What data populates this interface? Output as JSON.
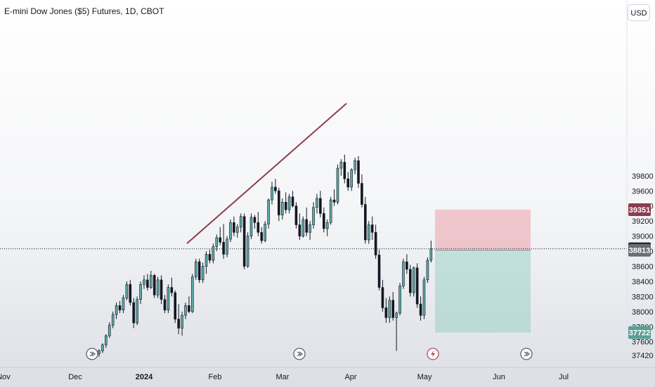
{
  "header": {
    "symbol_title": "E-mini Dow Jones ($5) Futures, 1D, CBOT",
    "currency_button": "USD"
  },
  "colors": {
    "up": "#26a69a",
    "up_body": "#5fa9a8",
    "down": "#131722",
    "trendline": "#8e3b4f",
    "stop_zone": "rgba(236,142,152,0.45)",
    "target_zone": "rgba(120,196,184,0.38)",
    "tag_stop": "#8e3b4f",
    "tag_last": "#131722",
    "tag_entry": "#6a6d78",
    "tag_target": "#5b9e96"
  },
  "chart_data": {
    "type": "candlestick",
    "y_axis": {
      "ticks": [
        37420,
        37600,
        37800,
        38000,
        38200,
        38400,
        38600,
        38800,
        39000,
        39200,
        39400,
        39600,
        39800
      ],
      "min": 37420,
      "max": 39820
    },
    "x_axis": {
      "labels": [
        "Nov",
        "Dec",
        "2024",
        "Feb",
        "Mar",
        "Apr",
        "May",
        "Jun",
        "Jul"
      ]
    },
    "price_tags": [
      {
        "name": "stop",
        "value": "39351"
      },
      {
        "name": "last",
        "value": "38832"
      },
      {
        "name": "entry",
        "value": "38813"
      },
      {
        "name": "target",
        "value": "37722"
      }
    ],
    "position": {
      "type": "long",
      "entry": 38813,
      "stop": 39351,
      "target": 37722,
      "start_date": "May 1",
      "end_date": "Jun 20"
    },
    "trendline": {
      "start": [
        "Jan 17",
        38200
      ],
      "end": [
        "Mar 27",
        39240
      ]
    },
    "event_markers": [
      "dividend",
      "dividend",
      "earnings",
      "dividend"
    ],
    "candles": [
      [
        37440,
        37500,
        37400,
        37480
      ],
      [
        37480,
        37580,
        37450,
        37560
      ],
      [
        37560,
        37700,
        37520,
        37680
      ],
      [
        37680,
        37860,
        37650,
        37820
      ],
      [
        37820,
        38000,
        37780,
        37960
      ],
      [
        37960,
        38120,
        37900,
        38080
      ],
      [
        38080,
        38140,
        37980,
        38020
      ],
      [
        38020,
        38220,
        37980,
        38180
      ],
      [
        38180,
        38400,
        38150,
        38360
      ],
      [
        38360,
        38420,
        38080,
        38120
      ],
      [
        38120,
        38180,
        37780,
        37850
      ],
      [
        37850,
        38200,
        37820,
        38160
      ],
      [
        38160,
        38400,
        38100,
        38360
      ],
      [
        38360,
        38480,
        38300,
        38420
      ],
      [
        38420,
        38500,
        38280,
        38320
      ],
      [
        38320,
        38540,
        38300,
        38480
      ],
      [
        38480,
        38500,
        38180,
        38220
      ],
      [
        38220,
        38460,
        38180,
        38420
      ],
      [
        38420,
        38480,
        38100,
        38160
      ],
      [
        38160,
        38220,
        37980,
        38020
      ],
      [
        38020,
        38360,
        37980,
        38320
      ],
      [
        38320,
        38450,
        38200,
        38250
      ],
      [
        38250,
        38280,
        37850,
        37900
      ],
      [
        37900,
        38100,
        37700,
        37780
      ],
      [
        37780,
        38000,
        37680,
        37950
      ],
      [
        37950,
        38120,
        37900,
        38080
      ],
      [
        38080,
        38200,
        37980,
        38000
      ],
      [
        38000,
        38500,
        37980,
        38460
      ],
      [
        38460,
        38700,
        38420,
        38660
      ],
      [
        38660,
        38700,
        38380,
        38420
      ],
      [
        38420,
        38650,
        38380,
        38600
      ],
      [
        38600,
        38800,
        38500,
        38760
      ],
      [
        38760,
        38820,
        38640,
        38680
      ],
      [
        38680,
        38900,
        38640,
        38860
      ],
      [
        38860,
        39020,
        38800,
        38980
      ],
      [
        38980,
        39120,
        38880,
        38920
      ],
      [
        38920,
        39160,
        38700,
        38760
      ],
      [
        38760,
        39000,
        38720,
        38960
      ],
      [
        38960,
        39220,
        38920,
        39180
      ],
      [
        39180,
        39260,
        39000,
        39050
      ],
      [
        39050,
        39160,
        38980,
        39120
      ],
      [
        39120,
        39300,
        39050,
        39260
      ],
      [
        39260,
        39300,
        38560,
        38600
      ],
      [
        38600,
        39050,
        38580,
        39000
      ],
      [
        39000,
        39300,
        38960,
        39250
      ],
      [
        39250,
        39280,
        39100,
        39180
      ],
      [
        39180,
        39320,
        39000,
        39050
      ],
      [
        39050,
        39120,
        38900,
        38940
      ],
      [
        38940,
        39200,
        38920,
        39160
      ],
      [
        39160,
        39500,
        39100,
        39480
      ],
      [
        39480,
        39720,
        39420,
        39650
      ],
      [
        39650,
        39760,
        39560,
        39600
      ],
      [
        39600,
        39640,
        39200,
        39280
      ],
      [
        39280,
        39500,
        39220,
        39450
      ],
      [
        39450,
        39580,
        39300,
        39350
      ],
      [
        39350,
        39560,
        39300,
        39520
      ],
      [
        39520,
        39600,
        39380,
        39400
      ],
      [
        39400,
        39450,
        39100,
        39150
      ],
      [
        39150,
        39300,
        38950,
        39000
      ],
      [
        39000,
        39260,
        38980,
        39220
      ],
      [
        39220,
        39380,
        39000,
        39050
      ],
      [
        39050,
        39200,
        38950,
        39150
      ],
      [
        39150,
        39450,
        39100,
        39380
      ],
      [
        39380,
        39560,
        39300,
        39500
      ],
      [
        39500,
        39600,
        39250,
        39300
      ],
      [
        39300,
        39380,
        39050,
        39100
      ],
      [
        39100,
        39220,
        39000,
        39180
      ],
      [
        39180,
        39520,
        39150,
        39480
      ],
      [
        39480,
        39620,
        39400,
        39450
      ],
      [
        39450,
        39950,
        39420,
        39900
      ],
      [
        39900,
        40020,
        39800,
        39980
      ],
      [
        39980,
        40080,
        39700,
        39760
      ],
      [
        39760,
        39850,
        39600,
        39650
      ],
      [
        39650,
        39900,
        39600,
        39880
      ],
      [
        39880,
        40040,
        39820,
        40000
      ],
      [
        40000,
        40060,
        39640,
        39700
      ],
      [
        39700,
        39820,
        39380,
        39420
      ],
      [
        39420,
        39520,
        38900,
        38950
      ],
      [
        38950,
        39200,
        38900,
        39150
      ],
      [
        39150,
        39260,
        38950,
        39050
      ],
      [
        39050,
        39150,
        38700,
        38750
      ],
      [
        38750,
        38820,
        38280,
        38320
      ],
      [
        38320,
        38420,
        38000,
        38050
      ],
      [
        38050,
        38180,
        37850,
        37920
      ],
      [
        37920,
        38200,
        37850,
        38150
      ],
      [
        38150,
        38260,
        37880,
        37920
      ],
      [
        37920,
        38000,
        37480,
        37980
      ],
      [
        37980,
        38380,
        37950,
        38340
      ],
      [
        38340,
        38700,
        38300,
        38660
      ],
      [
        38660,
        38760,
        38500,
        38560
      ],
      [
        38560,
        38620,
        38200,
        38250
      ],
      [
        38250,
        38600,
        38200,
        38580
      ],
      [
        38580,
        38640,
        38050,
        38100
      ],
      [
        38100,
        38200,
        37880,
        37950
      ],
      [
        37950,
        38460,
        37900,
        38420
      ],
      [
        38420,
        38720,
        38380,
        38680
      ],
      [
        38680,
        38940,
        38650,
        38832
      ]
    ]
  }
}
